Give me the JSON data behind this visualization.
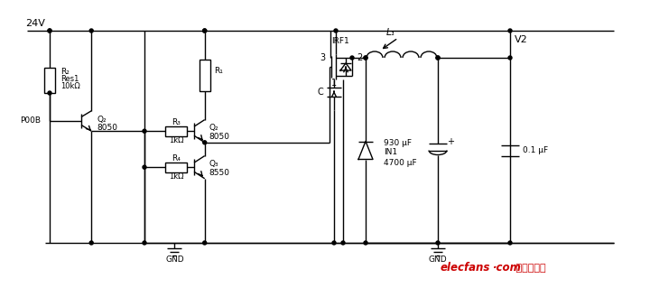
{
  "bg_color": "#ffffff",
  "line_color": "#000000",
  "label_24V": "24V",
  "label_V2": "V2",
  "label_GND1": "GND",
  "label_GND2": "GND",
  "label_R2": "R₂",
  "label_Res1": "Res1",
  "label_10k": "10kΩ",
  "label_R3": "R₃",
  "label_1k_R3": "1kΩ",
  "label_R4": "R₄",
  "label_1k_R4": "1kΩ",
  "label_R1": "R₁",
  "label_Q2_left": "Q₂",
  "label_8050_left": "8050",
  "label_Q2_mid": "Q₂",
  "label_8050_mid": "8050",
  "label_Q3": "Q₃",
  "label_8550": "8550",
  "label_IRF1": "IRF1",
  "label_C": "C",
  "label_L1": "L₁",
  "label_930uF": "930 μF",
  "label_IN1": "IN1",
  "label_4700uF": "4700 μF",
  "label_01uF": "0.1 μF",
  "label_POOB": "P00B",
  "label_plus": "+"
}
